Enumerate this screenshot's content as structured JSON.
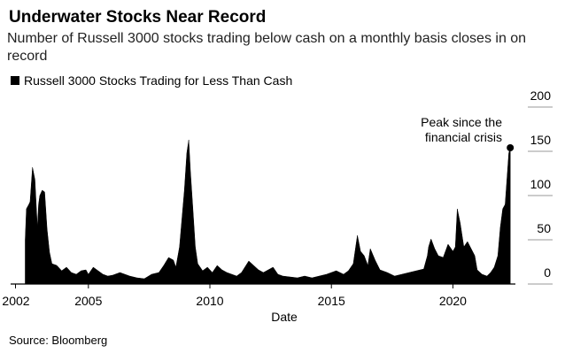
{
  "chart_data": {
    "type": "area",
    "title": "Underwater Stocks Near Record",
    "subtitle": "Number of Russell 3000 stocks trading below cash on a monthly basis closes in on record",
    "x_label": "Date",
    "source": "Source: Bloomberg",
    "annotation": [
      "Peak since the",
      "financial crisis"
    ],
    "x": [
      2002.4,
      2002.45,
      2002.55,
      2002.6,
      2002.7,
      2002.8,
      2002.9,
      2002.95,
      2003.0,
      2003.1,
      2003.2,
      2003.3,
      2003.4,
      2003.5,
      2003.7,
      2003.9,
      2004.1,
      2004.3,
      2004.5,
      2004.7,
      2004.9,
      2005.0,
      2005.2,
      2005.4,
      2005.6,
      2005.8,
      2006.0,
      2006.3,
      2006.5,
      2006.7,
      2007.0,
      2007.3,
      2007.6,
      2007.9,
      2008.1,
      2008.3,
      2008.5,
      2008.6,
      2008.75,
      2008.85,
      2008.95,
      2009.05,
      2009.13,
      2009.2,
      2009.3,
      2009.4,
      2009.5,
      2009.7,
      2009.9,
      2010.1,
      2010.3,
      2010.5,
      2010.7,
      2010.9,
      2011.1,
      2011.3,
      2011.6,
      2011.8,
      2012.0,
      2012.2,
      2012.4,
      2012.6,
      2012.8,
      2013.0,
      2013.3,
      2013.6,
      2013.9,
      2014.2,
      2014.5,
      2014.8,
      2015.0,
      2015.2,
      2015.5,
      2015.7,
      2015.9,
      2016.0,
      2016.07,
      2016.2,
      2016.35,
      2016.5,
      2016.6,
      2016.8,
      2017.0,
      2017.3,
      2017.6,
      2017.9,
      2018.2,
      2018.5,
      2018.8,
      2018.95,
      2019.0,
      2019.1,
      2019.25,
      2019.4,
      2019.6,
      2019.8,
      2020.0,
      2020.1,
      2020.18,
      2020.3,
      2020.45,
      2020.6,
      2020.75,
      2020.9,
      2021.0,
      2021.2,
      2021.4,
      2021.55,
      2021.7,
      2021.85,
      2021.95,
      2022.05,
      2022.15,
      2022.22,
      2022.3,
      2022.36
    ],
    "series": [
      {
        "name": "Russell 3000 Stocks Trading for Less Than Cash",
        "color": "#000000",
        "values": [
          50,
          85,
          90,
          93,
          132,
          118,
          64,
          90,
          100,
          106,
          104,
          62,
          36,
          23,
          21,
          15,
          19,
          13,
          11,
          15,
          16,
          11,
          19,
          15,
          11,
          9,
          10,
          13,
          11,
          9,
          7,
          6,
          11,
          13,
          21,
          30,
          27,
          19,
          42,
          74,
          106,
          148,
          163,
          127,
          85,
          42,
          23,
          15,
          19,
          13,
          21,
          16,
          13,
          11,
          9,
          13,
          26,
          21,
          16,
          13,
          16,
          19,
          11,
          9,
          8,
          7,
          9,
          7,
          9,
          11,
          13,
          15,
          11,
          15,
          23,
          42,
          55,
          37,
          32,
          21,
          40,
          27,
          16,
          13,
          9,
          11,
          13,
          15,
          17,
          32,
          42,
          51,
          40,
          32,
          30,
          45,
          37,
          42,
          85,
          69,
          42,
          48,
          40,
          32,
          16,
          11,
          9,
          13,
          19,
          32,
          64,
          85,
          90,
          117,
          148,
          154
        ]
      }
    ],
    "xlim": [
      2001.8,
      2022.9
    ],
    "xticks": [
      2002,
      2005,
      2010,
      2015,
      2020
    ],
    "ylim": [
      0,
      200
    ],
    "yticks": [
      0,
      50,
      100,
      150,
      200
    ]
  }
}
